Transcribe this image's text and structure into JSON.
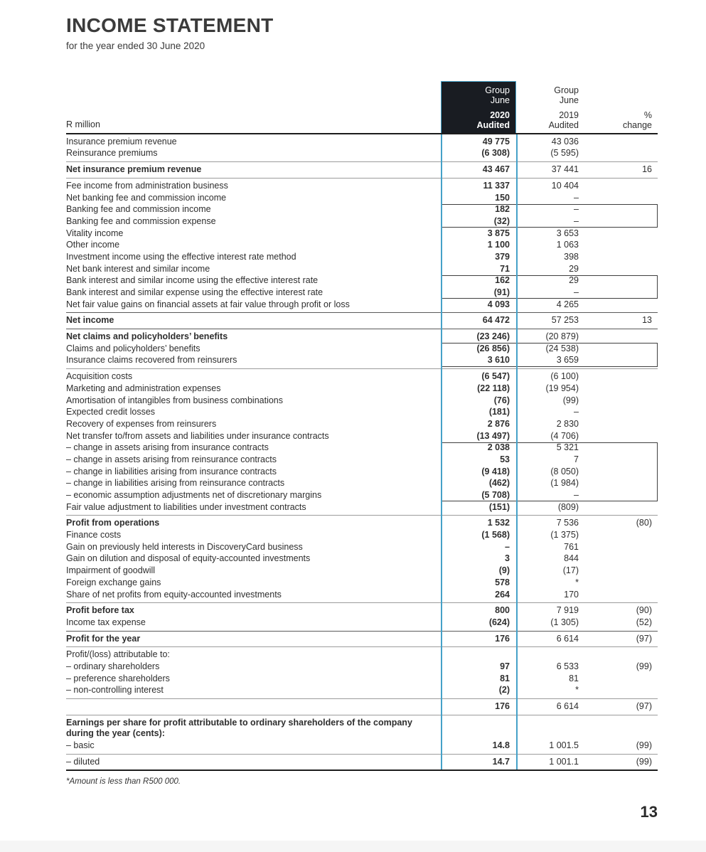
{
  "header": {
    "title": "INCOME STATEMENT",
    "subtitle": "for the year ended 30 June 2020"
  },
  "colors": {
    "accent_blue": "#45a1c8",
    "header_bg": "#191c22"
  },
  "table": {
    "row_label_header": "R million",
    "columns": {
      "group_2020": {
        "lines": [
          "Group",
          "June",
          "2020",
          "Audited"
        ]
      },
      "group_2019": {
        "lines": [
          "Group",
          "June",
          "2019",
          "Audited"
        ]
      },
      "change": {
        "lines": [
          "%",
          "change"
        ]
      }
    },
    "rows": [
      {
        "label": "Insurance premium revenue",
        "v2020": "49 775",
        "v2019": "43 036",
        "change": ""
      },
      {
        "label": "Reinsurance premiums",
        "v2020": "(6 308)",
        "v2019": "(5 595)",
        "change": ""
      },
      {
        "label": "Net insurance premium revenue",
        "v2020": "43 467",
        "v2019": "37 441",
        "change": "16",
        "bold": true,
        "sep": "thin"
      },
      {
        "label": "Fee income from administration business",
        "v2020": "11 337",
        "v2019": "10 404",
        "change": "",
        "sep": "thin"
      },
      {
        "label": "Net banking fee and commission income",
        "v2020": "150",
        "v2019": "–",
        "change": ""
      },
      {
        "label": "Banking fee and commission income",
        "v2020": "182",
        "v2019": "–",
        "change": "",
        "box": "start"
      },
      {
        "label": "Banking fee and commission expense",
        "v2020": "(32)",
        "v2019": "–",
        "change": "",
        "box": "end"
      },
      {
        "label": "Vitality income",
        "v2020": "3 875",
        "v2019": "3 653",
        "change": ""
      },
      {
        "label": "Other income",
        "v2020": "1 100",
        "v2019": "1 063",
        "change": ""
      },
      {
        "label": "Investment income using the effective interest rate method",
        "v2020": "379",
        "v2019": "398",
        "change": ""
      },
      {
        "label": "Net bank interest and similar income",
        "v2020": "71",
        "v2019": "29",
        "change": ""
      },
      {
        "label": "Bank interest and similar income using the effective interest rate",
        "v2020": "162",
        "v2019": "29",
        "change": "",
        "box": "start"
      },
      {
        "label": "Bank interest and similar expense using the effective interest rate",
        "v2020": "(91)",
        "v2019": "–",
        "change": "",
        "box": "end"
      },
      {
        "label": "Net fair value gains on financial assets at fair value through profit or loss",
        "v2020": "4 093",
        "v2019": "4 265",
        "change": ""
      },
      {
        "label": "Net income",
        "v2020": "64 472",
        "v2019": "57 253",
        "change": "13",
        "bold": true,
        "sep": "dark"
      },
      {
        "label": "Net claims and policyholders’ benefits",
        "v2020": "(23 246)",
        "v2019": "(20 879)",
        "change": "",
        "bold": true,
        "sep": "dark"
      },
      {
        "label": "Claims and policyholders’ benefits",
        "v2020": "(26 856)",
        "v2019": "(24 538)",
        "change": "",
        "box": "start"
      },
      {
        "label": "Insurance claims recovered from reinsurers",
        "v2020": "3 610",
        "v2019": "3 659",
        "change": "",
        "box": "end"
      },
      {
        "label": "Acquisition costs",
        "v2020": "(6 547)",
        "v2019": "(6 100)",
        "change": "",
        "sep": "thin"
      },
      {
        "label": "Marketing and administration expenses",
        "v2020": "(22 118)",
        "v2019": "(19 954)",
        "change": ""
      },
      {
        "label": "Amortisation of intangibles from business combinations",
        "v2020": "(76)",
        "v2019": "(99)",
        "change": ""
      },
      {
        "label": "Expected credit losses",
        "v2020": "(181)",
        "v2019": "–",
        "change": ""
      },
      {
        "label": "Recovery of expenses from reinsurers",
        "v2020": "2 876",
        "v2019": "2 830",
        "change": ""
      },
      {
        "label": "Net transfer to/from assets and liabilities under insurance contracts",
        "v2020": "(13 497)",
        "v2019": "(4 706)",
        "change": ""
      },
      {
        "label": "– change in assets arising from insurance contracts",
        "v2020": "2 038",
        "v2019": "5 321",
        "change": "",
        "box": "start"
      },
      {
        "label": "– change in assets arising from reinsurance contracts",
        "v2020": "53",
        "v2019": "7",
        "change": "",
        "box": "mid"
      },
      {
        "label": "– change in liabilities arising from insurance contracts",
        "v2020": "(9 418)",
        "v2019": "(8 050)",
        "change": "",
        "box": "mid"
      },
      {
        "label": "– change in liabilities arising from reinsurance contracts",
        "v2020": "(462)",
        "v2019": "(1 984)",
        "change": "",
        "box": "mid"
      },
      {
        "label": "– economic assumption adjustments net of discretionary margins",
        "v2020": "(5 708)",
        "v2019": "–",
        "change": "",
        "box": "end"
      },
      {
        "label": "Fair value adjustment to liabilities under investment contracts",
        "v2020": "(151)",
        "v2019": "(809)",
        "change": ""
      },
      {
        "label": "Profit from operations",
        "v2020": "1 532",
        "v2019": "7 536",
        "change": "(80)",
        "bold": true,
        "sep": "thin"
      },
      {
        "label": "Finance costs",
        "v2020": "(1 568)",
        "v2019": "(1 375)",
        "change": ""
      },
      {
        "label": "Gain on previously held interests in DiscoveryCard business",
        "v2020": "–",
        "v2019": "761",
        "change": ""
      },
      {
        "label": "Gain on dilution and disposal of equity-accounted investments",
        "v2020": "3",
        "v2019": "844",
        "change": ""
      },
      {
        "label": "Impairment of goodwill",
        "v2020": "(9)",
        "v2019": "(17)",
        "change": ""
      },
      {
        "label": "Foreign exchange gains",
        "v2020": "578",
        "v2019": "*",
        "change": ""
      },
      {
        "label": "Share of net profits from equity-accounted investments",
        "v2020": "264",
        "v2019": "170",
        "change": ""
      },
      {
        "label": "Profit before tax",
        "v2020": "800",
        "v2019": "7 919",
        "change": "(90)",
        "bold": true,
        "sep": "thin"
      },
      {
        "label": "Income tax expense",
        "v2020": "(624)",
        "v2019": "(1 305)",
        "change": "(52)"
      },
      {
        "label": "Profit for the year",
        "v2020": "176",
        "v2019": "6 614",
        "change": "(97)",
        "bold": true,
        "sep": "dark"
      },
      {
        "label": "Profit/(loss) attributable to:",
        "v2020": "",
        "v2019": "",
        "change": "",
        "sep": "thin"
      },
      {
        "label": "– ordinary shareholders",
        "v2020": "97",
        "v2019": "6 533",
        "change": "(99)"
      },
      {
        "label": "– preference shareholders",
        "v2020": "81",
        "v2019": "81",
        "change": ""
      },
      {
        "label": "– non-controlling interest",
        "v2020": "(2)",
        "v2019": "*",
        "change": ""
      },
      {
        "label": "",
        "v2020": "176",
        "v2019": "6 614",
        "change": "(97)",
        "sep": "thin"
      },
      {
        "label": "Earnings per share for profit attributable to ordinary shareholders of the company during the year (cents):",
        "v2020": "",
        "v2019": "",
        "change": "",
        "bold": true,
        "sep": "thin"
      },
      {
        "label": "– basic",
        "v2020": "14.8",
        "v2019": "1 001.5",
        "change": "(99)"
      },
      {
        "label": "– diluted",
        "v2020": "14.7",
        "v2019": "1 001.1",
        "change": "(99)",
        "sep": "thin"
      }
    ]
  },
  "footnote": "*Amount is less than R500 000.",
  "page_number": "13"
}
